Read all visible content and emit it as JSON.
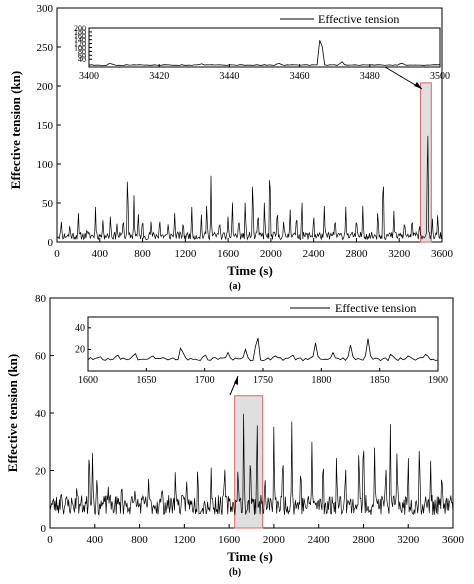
{
  "chart_data": [
    {
      "type": "line",
      "panel_label": "(a)",
      "xlabel": "Time (s)",
      "ylabel": "Effective tension (kn)",
      "xlim": [
        0,
        3600
      ],
      "ylim": [
        0,
        300
      ],
      "xticks": [
        0,
        400,
        800,
        1200,
        1600,
        2000,
        2400,
        2800,
        3200,
        3600
      ],
      "yticks": [
        0,
        50,
        100,
        150,
        200,
        250,
        300
      ],
      "legend": "Effective tension",
      "legend_position": "top-right",
      "grid": false,
      "baseline": 8,
      "peaks": [
        [
          40,
          30
        ],
        [
          120,
          25
        ],
        [
          200,
          40
        ],
        [
          280,
          18
        ],
        [
          360,
          45
        ],
        [
          430,
          30
        ],
        [
          500,
          38
        ],
        [
          560,
          25
        ],
        [
          620,
          35
        ],
        [
          660,
          104
        ],
        [
          720,
          60
        ],
        [
          760,
          42
        ],
        [
          800,
          34
        ],
        [
          880,
          28
        ],
        [
          960,
          33
        ],
        [
          1040,
          26
        ],
        [
          1100,
          40
        ],
        [
          1180,
          30
        ],
        [
          1260,
          45
        ],
        [
          1350,
          35
        ],
        [
          1400,
          55
        ],
        [
          1440,
          85
        ],
        [
          1520,
          30
        ],
        [
          1600,
          35
        ],
        [
          1640,
          55
        ],
        [
          1700,
          35
        ],
        [
          1760,
          60
        ],
        [
          1830,
          95
        ],
        [
          1880,
          45
        ],
        [
          1940,
          60
        ],
        [
          1990,
          121
        ],
        [
          2060,
          50
        ],
        [
          2120,
          30
        ],
        [
          2180,
          45
        ],
        [
          2240,
          40
        ],
        [
          2290,
          60
        ],
        [
          2400,
          40
        ],
        [
          2500,
          50
        ],
        [
          2600,
          35
        ],
        [
          2700,
          45
        ],
        [
          2800,
          35
        ],
        [
          2860,
          50
        ],
        [
          3000,
          48
        ],
        [
          3050,
          108
        ],
        [
          3150,
          40
        ],
        [
          3250,
          30
        ],
        [
          3320,
          35
        ],
        [
          3390,
          25
        ],
        [
          3466,
          190
        ],
        [
          3510,
          30
        ],
        [
          3560,
          40
        ]
      ],
      "inset": {
        "xlim": [
          3400,
          3500
        ],
        "ylim": [
          0,
          200
        ],
        "xticks": [
          3400,
          3420,
          3440,
          3460,
          3480,
          3500
        ],
        "yticks": [
          40,
          60,
          80,
          100,
          120,
          140,
          160,
          180,
          200
        ],
        "highlight_range": [
          3400,
          3500
        ],
        "peaks": [
          [
            3406,
            22
          ],
          [
            3432,
            18
          ],
          [
            3454,
            22
          ],
          [
            3466,
            200
          ],
          [
            3472,
            30
          ],
          [
            3489,
            24
          ]
        ]
      }
    },
    {
      "type": "line",
      "panel_label": "(b)",
      "xlabel": "Time (s)",
      "ylabel": "Effective tension (kn)",
      "xlim": [
        0,
        3600
      ],
      "ylim": [
        0,
        80
      ],
      "xticks": [
        0,
        400,
        800,
        1200,
        1600,
        2000,
        2400,
        2800,
        3200,
        3600
      ],
      "yticks": [
        0,
        20,
        40,
        60,
        80
      ],
      "legend": "Effective tension",
      "legend_position": "top-right",
      "grid": false,
      "baseline": 8,
      "peaks": [
        [
          100,
          14
        ],
        [
          240,
          16
        ],
        [
          350,
          33
        ],
        [
          380,
          28
        ],
        [
          420,
          20
        ],
        [
          520,
          15
        ],
        [
          640,
          17
        ],
        [
          760,
          14
        ],
        [
          880,
          18
        ],
        [
          1000,
          16
        ],
        [
          1120,
          22
        ],
        [
          1220,
          18
        ],
        [
          1320,
          24
        ],
        [
          1440,
          21
        ],
        [
          1560,
          25
        ],
        [
          1680,
          24
        ],
        [
          1730,
          43
        ],
        [
          1790,
          30
        ],
        [
          1850,
          42
        ],
        [
          1920,
          20
        ],
        [
          2000,
          38
        ],
        [
          2080,
          30
        ],
        [
          2160,
          37
        ],
        [
          2240,
          24
        ],
        [
          2340,
          30
        ],
        [
          2440,
          28
        ],
        [
          2560,
          28
        ],
        [
          2640,
          25
        ],
        [
          2760,
          32
        ],
        [
          2800,
          38
        ],
        [
          2900,
          30
        ],
        [
          3000,
          25
        ],
        [
          3040,
          39
        ],
        [
          3100,
          30
        ],
        [
          3200,
          28
        ],
        [
          3300,
          34
        ],
        [
          3400,
          25
        ],
        [
          3500,
          22
        ]
      ],
      "inset": {
        "xlim": [
          1600,
          1900
        ],
        "ylim": [
          0,
          50
        ],
        "xticks": [
          1600,
          1650,
          1700,
          1750,
          1800,
          1850,
          1900
        ],
        "xtick_labels": [
          "1600",
          "1650",
          "1700",
          "1750",
          "1800",
          "1850",
          "1900"
        ],
        "yticks": [
          20,
          40
        ],
        "highlight_range": [
          1650,
          1900
        ],
        "peaks": [
          [
            1610,
            14
          ],
          [
            1625,
            16
          ],
          [
            1640,
            18
          ],
          [
            1655,
            15
          ],
          [
            1680,
            25
          ],
          [
            1700,
            16
          ],
          [
            1720,
            17
          ],
          [
            1735,
            20
          ],
          [
            1745,
            38
          ],
          [
            1760,
            15
          ],
          [
            1775,
            16
          ],
          [
            1795,
            26
          ],
          [
            1810,
            17
          ],
          [
            1825,
            24
          ],
          [
            1840,
            30
          ],
          [
            1860,
            17
          ],
          [
            1875,
            15
          ],
          [
            1890,
            17
          ]
        ]
      }
    }
  ]
}
